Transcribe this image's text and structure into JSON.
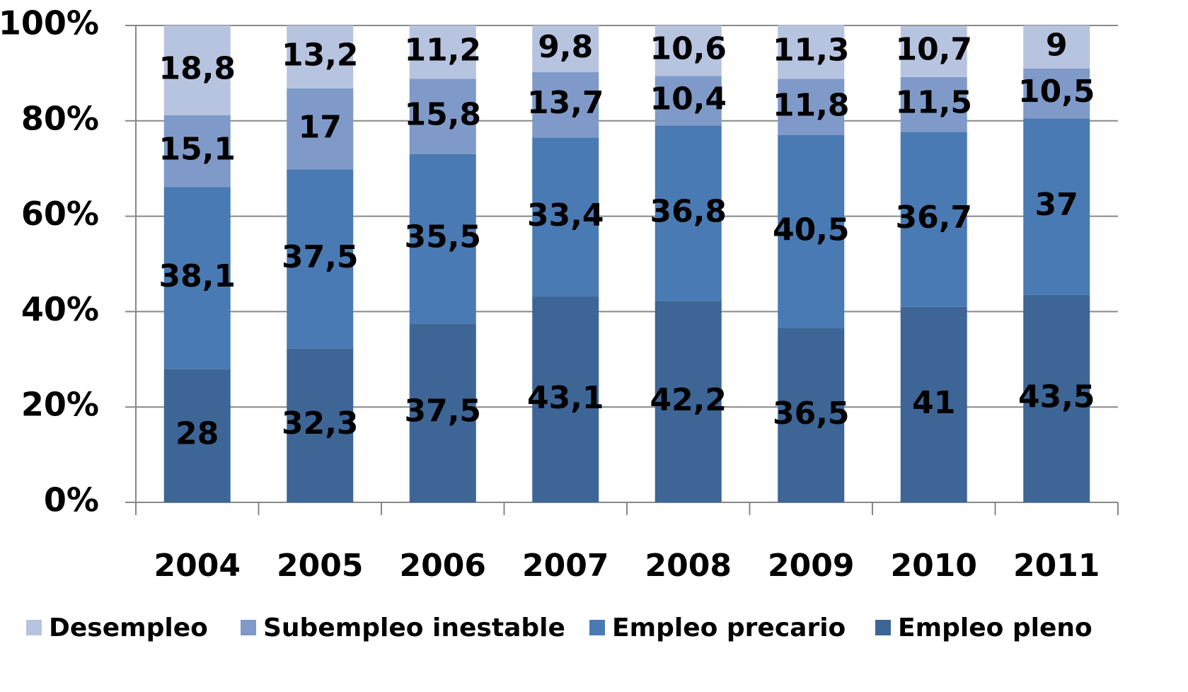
{
  "chart_data": {
    "type": "stacked_bar",
    "categories": [
      "2004",
      "2005",
      "2006",
      "2007",
      "2008",
      "2009",
      "2010",
      "2011"
    ],
    "series": [
      {
        "name": "Empleo pleno",
        "color": "#3d6596",
        "values": [
          28,
          32.3,
          37.5,
          43.1,
          42.2,
          36.5,
          41,
          43.5
        ],
        "value_labels": [
          "28",
          "32,3",
          "37,5",
          "43,1",
          "42,2",
          "36,5",
          "41",
          "43,5"
        ]
      },
      {
        "name": "Empleo precario",
        "color": "#4a7ab3",
        "values": [
          38.1,
          37.5,
          35.5,
          33.4,
          36.8,
          40.5,
          36.7,
          37
        ],
        "value_labels": [
          "38,1",
          "37,5",
          "35,5",
          "33,4",
          "36,8",
          "40,5",
          "36,7",
          "37"
        ]
      },
      {
        "name": "Subempleo inestable",
        "color": "#7f9ac8",
        "values": [
          15.1,
          17,
          15.8,
          13.7,
          10.4,
          11.8,
          11.5,
          10.5
        ],
        "value_labels": [
          "15,1",
          "17",
          "15,8",
          "13,7",
          "10,4",
          "11,8",
          "11,5",
          "10,5"
        ]
      },
      {
        "name": "Desempleo",
        "color": "#b7c4df",
        "values": [
          18.8,
          13.2,
          11.2,
          9.8,
          10.6,
          11.3,
          10.7,
          9
        ],
        "value_labels": [
          "18,8",
          "13,2",
          "11,2",
          "9,8",
          "10,6",
          "11,3",
          "10,7",
          "9"
        ]
      }
    ],
    "ylim": [
      0,
      100
    ],
    "yticks": [
      {
        "value": 0,
        "label": "0%"
      },
      {
        "value": 20,
        "label": "20%"
      },
      {
        "value": 40,
        "label": "40%"
      },
      {
        "value": 60,
        "label": "60%"
      },
      {
        "value": 80,
        "label": "80%"
      },
      {
        "value": 100,
        "label": "100%"
      }
    ],
    "grid": true,
    "legend": "bottom"
  }
}
